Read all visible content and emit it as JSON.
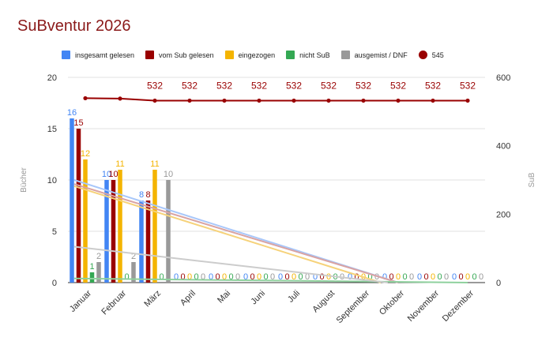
{
  "chart_data": {
    "type": "bar",
    "title": "SuBventur 2026",
    "ylabel": "Bücher",
    "y2label": "SuB",
    "ylim": [
      0,
      20
    ],
    "y2lim": [
      0,
      600
    ],
    "yticks": [
      0,
      5,
      10,
      15,
      20
    ],
    "y2ticks": [
      0,
      200,
      400,
      600
    ],
    "grid": true,
    "legend_position": "top",
    "categories": [
      "Januar",
      "Februar",
      "März",
      "April",
      "Mai",
      "Juni",
      "Juli",
      "August",
      "September",
      "Oktober",
      "November",
      "Dezember"
    ],
    "series": [
      {
        "name": "insgesamt gelesen",
        "color": "#4285f4",
        "values": [
          16,
          10,
          8,
          0,
          0,
          0,
          0,
          0,
          0,
          0,
          0,
          0
        ],
        "labels": [
          "16",
          "10",
          "8",
          "0",
          "0",
          "0",
          "0",
          "0",
          "0",
          "0",
          "0",
          "0"
        ]
      },
      {
        "name": "vom Sub gelesen",
        "color": "#990000",
        "values": [
          15,
          10,
          8,
          0,
          0,
          0,
          0,
          0,
          0,
          0,
          0,
          0
        ],
        "labels": [
          "15",
          "10",
          "8",
          "0",
          "0",
          "0",
          "0",
          "0",
          "0",
          "0",
          "0",
          "0"
        ]
      },
      {
        "name": "eingezogen",
        "color": "#f4b400",
        "values": [
          12,
          11,
          11,
          0,
          0,
          0,
          0,
          0,
          0,
          0,
          0,
          0
        ],
        "labels": [
          "12",
          "11",
          "11",
          "0",
          "0",
          "0",
          "0",
          "0",
          "0",
          "0",
          "0",
          "0"
        ]
      },
      {
        "name": "nicht SuB",
        "color": "#34a853",
        "values": [
          1,
          0,
          0,
          0,
          0,
          0,
          0,
          0,
          0,
          0,
          0,
          0
        ],
        "labels": [
          "1",
          "0",
          "0",
          "0",
          "0",
          "0",
          "0",
          "0",
          "0",
          "0",
          "0",
          "0"
        ]
      },
      {
        "name": "ausgemist / DNF",
        "color": "#999999",
        "values": [
          2,
          2,
          10,
          0,
          0,
          0,
          0,
          0,
          0,
          0,
          0,
          0
        ],
        "labels": [
          "2",
          "2",
          "10",
          "0",
          "0",
          "0",
          "0",
          "0",
          "0",
          "0",
          "0",
          "0"
        ]
      }
    ],
    "line_series": {
      "name": "545",
      "color": "#990000",
      "axis": "right",
      "values": [
        539,
        538,
        532,
        532,
        532,
        532,
        532,
        532,
        532,
        532,
        532,
        532
      ],
      "labels": [
        "",
        "",
        "532",
        "532",
        "532",
        "532",
        "532",
        "532",
        "532",
        "532",
        "532",
        "532"
      ]
    },
    "trendlines": [
      {
        "series": "insgesamt gelesen",
        "color": "#a8c7fa",
        "from": [
          0,
          10
        ],
        "to": [
          9,
          0
        ]
      },
      {
        "series": "vom Sub gelesen",
        "color": "#d9a3a3",
        "from": [
          0,
          9.6
        ],
        "to": [
          9,
          0
        ]
      },
      {
        "series": "eingezogen",
        "color": "#f6d27a",
        "from": [
          0,
          9.4
        ],
        "to": [
          8.5,
          0
        ]
      },
      {
        "series": "nicht SuB",
        "color": "#8fd19e",
        "from": [
          0,
          0.4
        ],
        "to": [
          11,
          0
        ]
      },
      {
        "series": "ausgemist / DNF",
        "color": "#cccccc",
        "from": [
          0,
          3.5
        ],
        "to": [
          8.7,
          0
        ]
      }
    ]
  }
}
